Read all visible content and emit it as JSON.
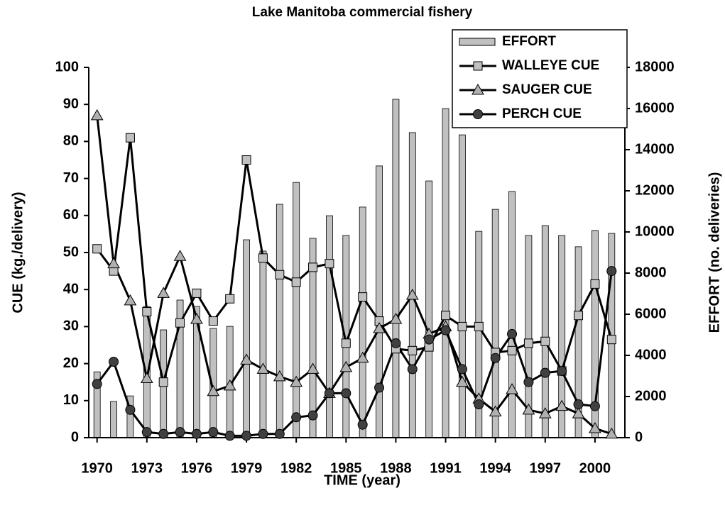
{
  "chart_data": {
    "type": "combo",
    "title": "Lake Manitoba commercial fishery",
    "x_label": "TIME (year)",
    "y_label": "CUE (kg./delivery)",
    "y2_label": "EFFORT (no. deliveries)",
    "x": [
      1970,
      1971,
      1972,
      1973,
      1974,
      1975,
      1976,
      1977,
      1978,
      1979,
      1980,
      1981,
      1982,
      1983,
      1984,
      1985,
      1986,
      1987,
      1988,
      1989,
      1990,
      1991,
      1992,
      1993,
      1994,
      1995,
      1996,
      1997,
      1998,
      1999,
      2000,
      2001
    ],
    "xlim": [
      1969.5,
      2001.8
    ],
    "xticks": [
      1970,
      1973,
      1976,
      1979,
      1982,
      1985,
      1988,
      1991,
      1994,
      1997,
      2000
    ],
    "ylim": [
      0,
      100
    ],
    "yticks": [
      0,
      10,
      20,
      30,
      40,
      50,
      60,
      70,
      80,
      90,
      100
    ],
    "y2lim": [
      0,
      18000
    ],
    "y2ticks": [
      0,
      2000,
      4000,
      6000,
      8000,
      10000,
      12000,
      14000,
      16000,
      18000
    ],
    "legend": "top right",
    "series": [
      {
        "name": "EFFORT",
        "type": "bar",
        "axis": "y2",
        "color": "#c0c0c0",
        "values": [
          3200,
          1760,
          2030,
          6380,
          5240,
          6690,
          6380,
          5310,
          5410,
          9620,
          9070,
          11345,
          12410,
          9690,
          10790,
          9830,
          11210,
          13210,
          16450,
          14830,
          12480,
          16000,
          14720,
          10030,
          11100,
          11970,
          9830,
          10310,
          9830,
          9280,
          10070,
          9930
        ]
      },
      {
        "name": "WALLEYE CUE",
        "type": "line",
        "marker": "square",
        "color": "#c0c0c0",
        "values": [
          51,
          45,
          81,
          34,
          15,
          31,
          39,
          31.5,
          37.5,
          75,
          48.5,
          44,
          42,
          46,
          47,
          25.5,
          38,
          31.5,
          24,
          23.5,
          24.5,
          33,
          30,
          30,
          23,
          23.5,
          25.5,
          26,
          18,
          33,
          41.5,
          26.5
        ]
      },
      {
        "name": "SAUGER CUE",
        "type": "line",
        "marker": "triangle",
        "color": "#b0b0b0",
        "values": [
          87,
          47,
          37,
          16,
          39,
          49,
          32,
          12.5,
          14,
          21,
          18.5,
          16.5,
          15,
          18.5,
          12,
          19,
          21.5,
          29.5,
          32,
          38.5,
          28,
          30,
          15,
          10.5,
          7,
          13,
          7.5,
          6.5,
          8.5,
          6.5,
          2.5,
          1
        ]
      },
      {
        "name": "PERCH CUE",
        "type": "line",
        "marker": "circle",
        "color": "#404040",
        "values": [
          14.5,
          20.5,
          7.5,
          1.5,
          1,
          1.5,
          1,
          1.5,
          0.5,
          0.5,
          1,
          1,
          5.5,
          6,
          12,
          12,
          3.5,
          13.5,
          25.5,
          18.5,
          26.5,
          29,
          18.5,
          9,
          21.5,
          28,
          15,
          17.5,
          18,
          9,
          8.5,
          45
        ]
      }
    ]
  }
}
